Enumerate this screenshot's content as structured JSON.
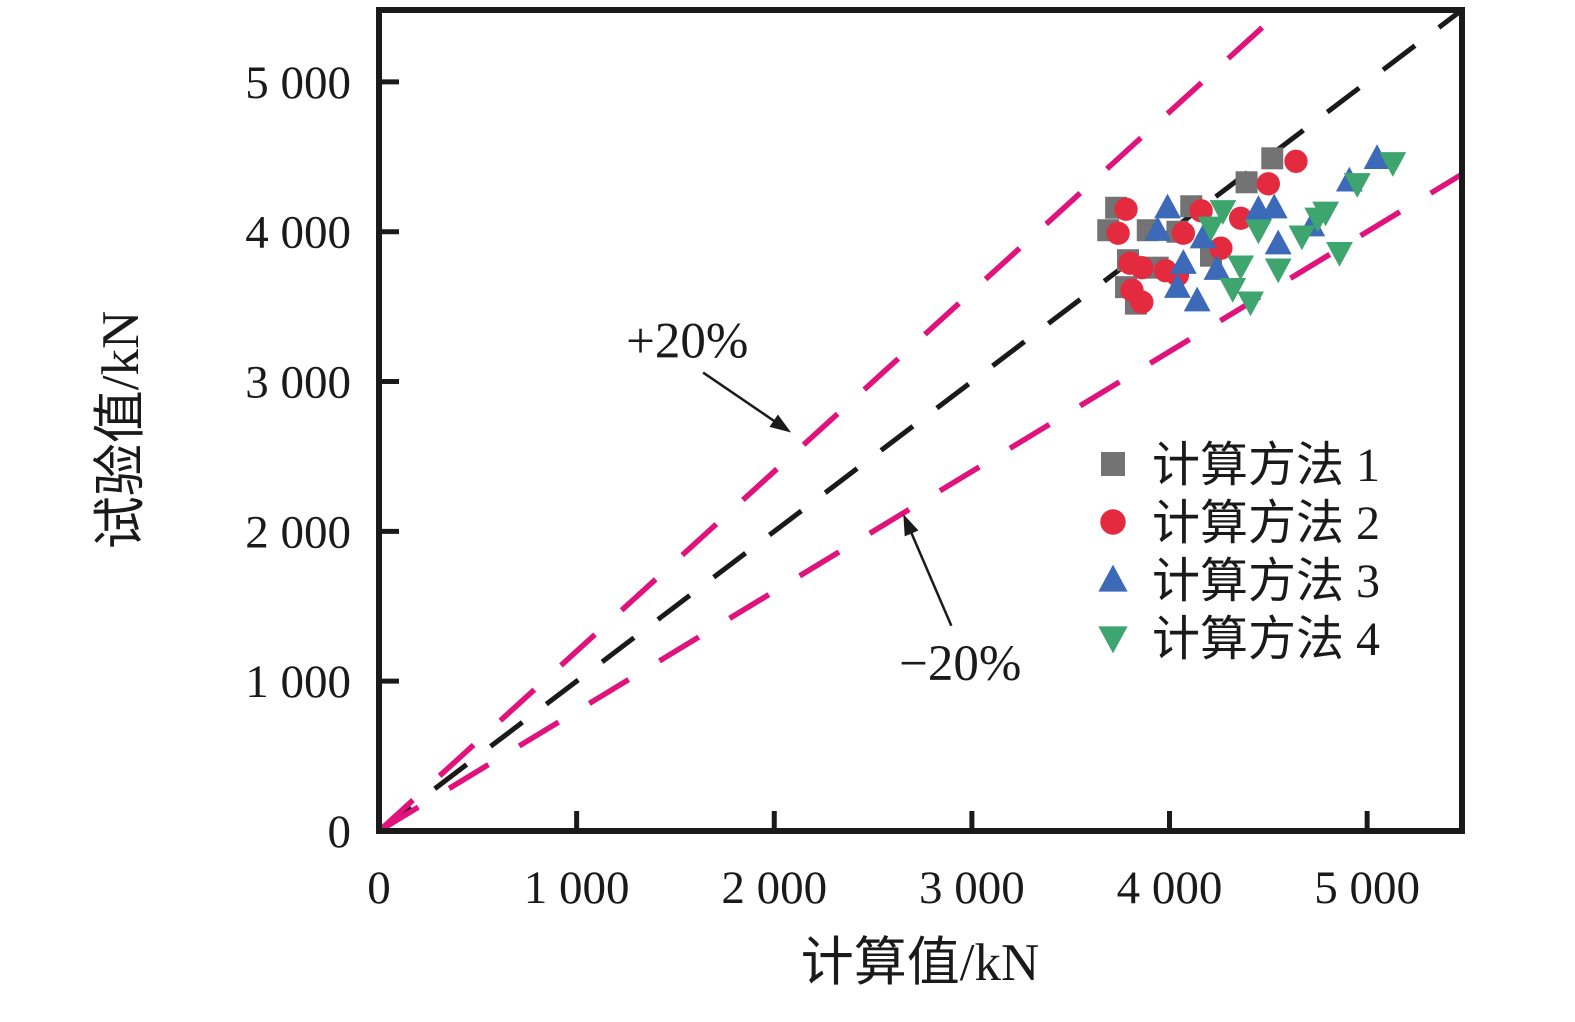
{
  "figure": {
    "background": "#ffffff",
    "frame_color": "#1a1a1a"
  },
  "chart_data": {
    "type": "scatter",
    "title": "",
    "xlabel": "计算值/kN",
    "ylabel": "试验值/kN",
    "xlim": [
      0,
      5480
    ],
    "ylim": [
      0,
      5480
    ],
    "grid": false,
    "x_ticks": {
      "values": [
        0,
        1000,
        2000,
        3000,
        4000,
        5000
      ],
      "labels": [
        "0",
        "1 000",
        "2 000",
        "3 000",
        "4 000",
        "5 000"
      ]
    },
    "y_ticks": {
      "values": [
        0,
        1000,
        2000,
        3000,
        4000,
        5000
      ],
      "labels": [
        "0",
        "1 000",
        "2 000",
        "3 000",
        "4 000",
        "5 000"
      ]
    },
    "reference_lines": [
      {
        "name": "line-1-to-1",
        "slope": 1.0,
        "color": "#1a1a1a",
        "dash": "40 30",
        "width": 5
      },
      {
        "name": "line-plus-20",
        "slope": 1.2,
        "color": "#e0137c",
        "dash": "46 36",
        "width": 5.5
      },
      {
        "name": "line-minus-20",
        "slope": 0.8,
        "color": "#e0137c",
        "dash": "46 36",
        "width": 5.5
      }
    ],
    "annotations": [
      {
        "name": "plus-20",
        "text": "+20%",
        "x": 1560,
        "y": 3273,
        "arrow": {
          "from": [
            1640,
            3060
          ],
          "to": [
            2085,
            2660
          ]
        }
      },
      {
        "name": "minus-20",
        "text": "−20%",
        "x": 2941,
        "y": 1120,
        "arrow": {
          "from": [
            2896,
            1370
          ],
          "to": [
            2653,
            2115
          ]
        }
      }
    ],
    "legend": {
      "position": "inside-right",
      "items": [
        {
          "label": "计算方法 1",
          "marker": "square",
          "color": "#737373"
        },
        {
          "label": "计算方法 2",
          "marker": "circle",
          "color": "#e32a3f"
        },
        {
          "label": "计算方法 3",
          "marker": "triangle-up",
          "color": "#3c6ab8"
        },
        {
          "label": "计算方法 4",
          "marker": "triangle-down",
          "color": "#3ea56f"
        }
      ]
    },
    "series": [
      {
        "name": "计算方法 1",
        "marker": "square",
        "color": "#737373",
        "points": [
          [
            3690,
            4010
          ],
          [
            3730,
            4160
          ],
          [
            3780,
            3630
          ],
          [
            3790,
            3810
          ],
          [
            3830,
            3520
          ],
          [
            3890,
            4010
          ],
          [
            3940,
            3760
          ],
          [
            4040,
            4000
          ],
          [
            4110,
            4170
          ],
          [
            4210,
            3840
          ],
          [
            4390,
            4330
          ],
          [
            4520,
            4490
          ]
        ]
      },
      {
        "name": "计算方法 2",
        "marker": "circle",
        "color": "#e32a3f",
        "points": [
          [
            3740,
            3990
          ],
          [
            3780,
            4150
          ],
          [
            3800,
            3790
          ],
          [
            3810,
            3610
          ],
          [
            3860,
            3530
          ],
          [
            3860,
            3760
          ],
          [
            3980,
            3740
          ],
          [
            4040,
            3710
          ],
          [
            4070,
            3990
          ],
          [
            4160,
            4140
          ],
          [
            4260,
            3890
          ],
          [
            4360,
            4090
          ],
          [
            4500,
            4320
          ],
          [
            4640,
            4470
          ]
        ]
      },
      {
        "name": "计算方法 3",
        "marker": "triangle-up",
        "color": "#3c6ab8",
        "points": [
          [
            3940,
            4010
          ],
          [
            3990,
            4160
          ],
          [
            4040,
            3630
          ],
          [
            4070,
            3790
          ],
          [
            4140,
            3540
          ],
          [
            4170,
            3960
          ],
          [
            4240,
            3750
          ],
          [
            4450,
            4150
          ],
          [
            4530,
            4160
          ],
          [
            4550,
            3920
          ],
          [
            4720,
            4040
          ],
          [
            4910,
            4340
          ],
          [
            5050,
            4490
          ]
        ]
      },
      {
        "name": "计算方法 4",
        "marker": "triangle-down",
        "color": "#3ea56f",
        "points": [
          [
            4210,
            4030
          ],
          [
            4270,
            4140
          ],
          [
            4320,
            3620
          ],
          [
            4360,
            3770
          ],
          [
            4410,
            3530
          ],
          [
            4450,
            4010
          ],
          [
            4550,
            3750
          ],
          [
            4670,
            3970
          ],
          [
            4750,
            4090
          ],
          [
            4790,
            4130
          ],
          [
            4860,
            3860
          ],
          [
            4950,
            4320
          ],
          [
            5130,
            4460
          ]
        ]
      }
    ]
  }
}
